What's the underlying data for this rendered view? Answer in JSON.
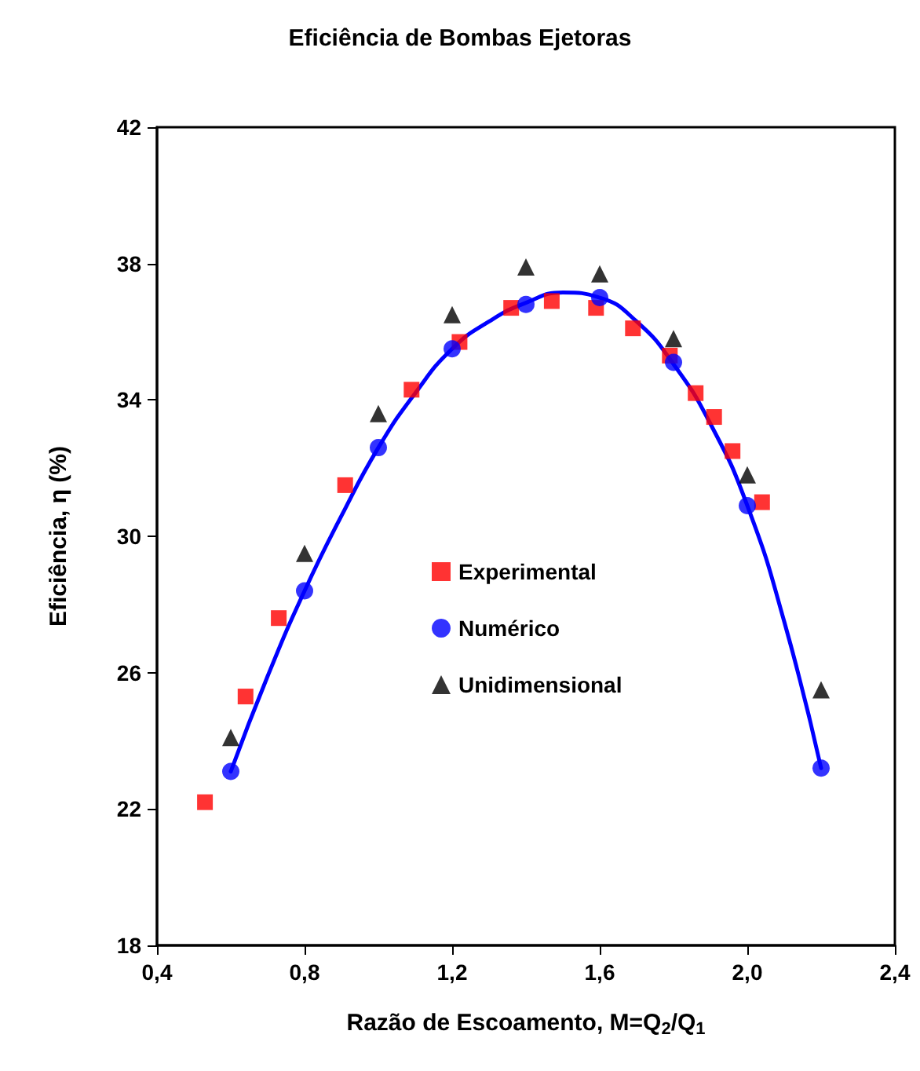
{
  "chart_data": {
    "type": "scatter",
    "title": "Eficiência de Bombas Ejetoras",
    "xlabel": "Razão de Escoamento, M=Q$_{2}$/Q$_{1}$",
    "ylabel": "Eficiência, η (%)",
    "xlim": [
      0.4,
      2.4
    ],
    "xticks": [
      {
        "value": 0.4,
        "label": "0,4"
      },
      {
        "value": 0.8,
        "label": "0,8"
      },
      {
        "value": 1.2,
        "label": "1,2"
      },
      {
        "value": 1.6,
        "label": "1,6"
      },
      {
        "value": 2.0,
        "label": "2,0"
      },
      {
        "value": 2.4,
        "label": "2,4"
      }
    ],
    "ylim": [
      18,
      42
    ],
    "yticks": [
      18,
      22,
      26,
      30,
      34,
      38,
      42
    ],
    "grid": false,
    "legend": "center",
    "series": [
      {
        "name": "Experimental",
        "color": "#ff0000",
        "marker": "square",
        "x": [
          0.53,
          0.64,
          0.73,
          0.91,
          1.09,
          1.22,
          1.36,
          1.47,
          1.59,
          1.69,
          1.79,
          1.86,
          1.91,
          1.96,
          2.04
        ],
        "values": [
          22.2,
          25.3,
          27.6,
          31.5,
          34.3,
          35.7,
          36.7,
          36.9,
          36.7,
          36.1,
          35.3,
          34.2,
          33.5,
          32.5,
          31.0
        ]
      },
      {
        "name": "Numérico",
        "color": "#0000ff",
        "marker": "circle",
        "x": [
          0.6,
          0.8,
          1.0,
          1.2,
          1.4,
          1.6,
          1.8,
          2.0,
          2.2
        ],
        "values": [
          23.1,
          28.4,
          32.6,
          35.5,
          36.8,
          37.0,
          35.1,
          30.9,
          23.2
        ]
      },
      {
        "name": "Unidimensional",
        "color": "#000000",
        "marker": "triangle",
        "x": [
          0.6,
          0.8,
          1.0,
          1.2,
          1.4,
          1.6,
          1.8,
          2.0,
          2.2
        ],
        "values": [
          24.1,
          29.5,
          33.6,
          36.5,
          37.9,
          37.7,
          35.8,
          31.8,
          25.5
        ]
      },
      {
        "type": "line",
        "color": "#0000ff",
        "marker": "none",
        "line_style": "solid",
        "x": [
          0.6,
          0.7,
          0.8,
          0.9,
          1.0,
          1.1,
          1.2,
          1.3,
          1.4,
          1.5,
          1.6,
          1.7,
          1.8,
          1.9,
          2.0,
          2.1,
          2.2
        ],
        "values": [
          23.1,
          25.9,
          28.4,
          30.6,
          32.6,
          34.2,
          35.5,
          36.3,
          36.85,
          37.15,
          37.0,
          36.3,
          35.05,
          33.3,
          30.9,
          27.5,
          23.2
        ]
      }
    ]
  }
}
